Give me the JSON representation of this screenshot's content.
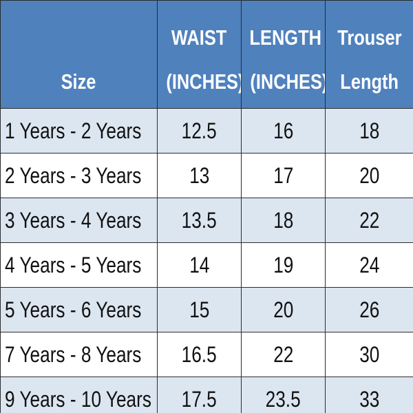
{
  "table": {
    "header": [
      [
        "Size"
      ],
      [
        "WAIST",
        "(INCHES)"
      ],
      [
        "LENGTH",
        "(INCHES)"
      ],
      [
        "Trouser",
        "Length"
      ]
    ],
    "rows": [
      [
        "1 Years - 2 Years",
        "12.5",
        "16",
        "18"
      ],
      [
        "2 Years - 3 Years",
        "13",
        "17",
        "20"
      ],
      [
        "3 Years - 4 Years",
        "13.5",
        "18",
        "22"
      ],
      [
        "4 Years - 5 Years",
        "14",
        "19",
        "24"
      ],
      [
        "5 Years - 6 Years",
        "15",
        "20",
        "26"
      ],
      [
        "7 Years - 8 Years",
        "16.5",
        "22",
        "30"
      ],
      [
        "9 Years - 10 Years",
        "17.5",
        "23.5",
        "33"
      ]
    ]
  }
}
